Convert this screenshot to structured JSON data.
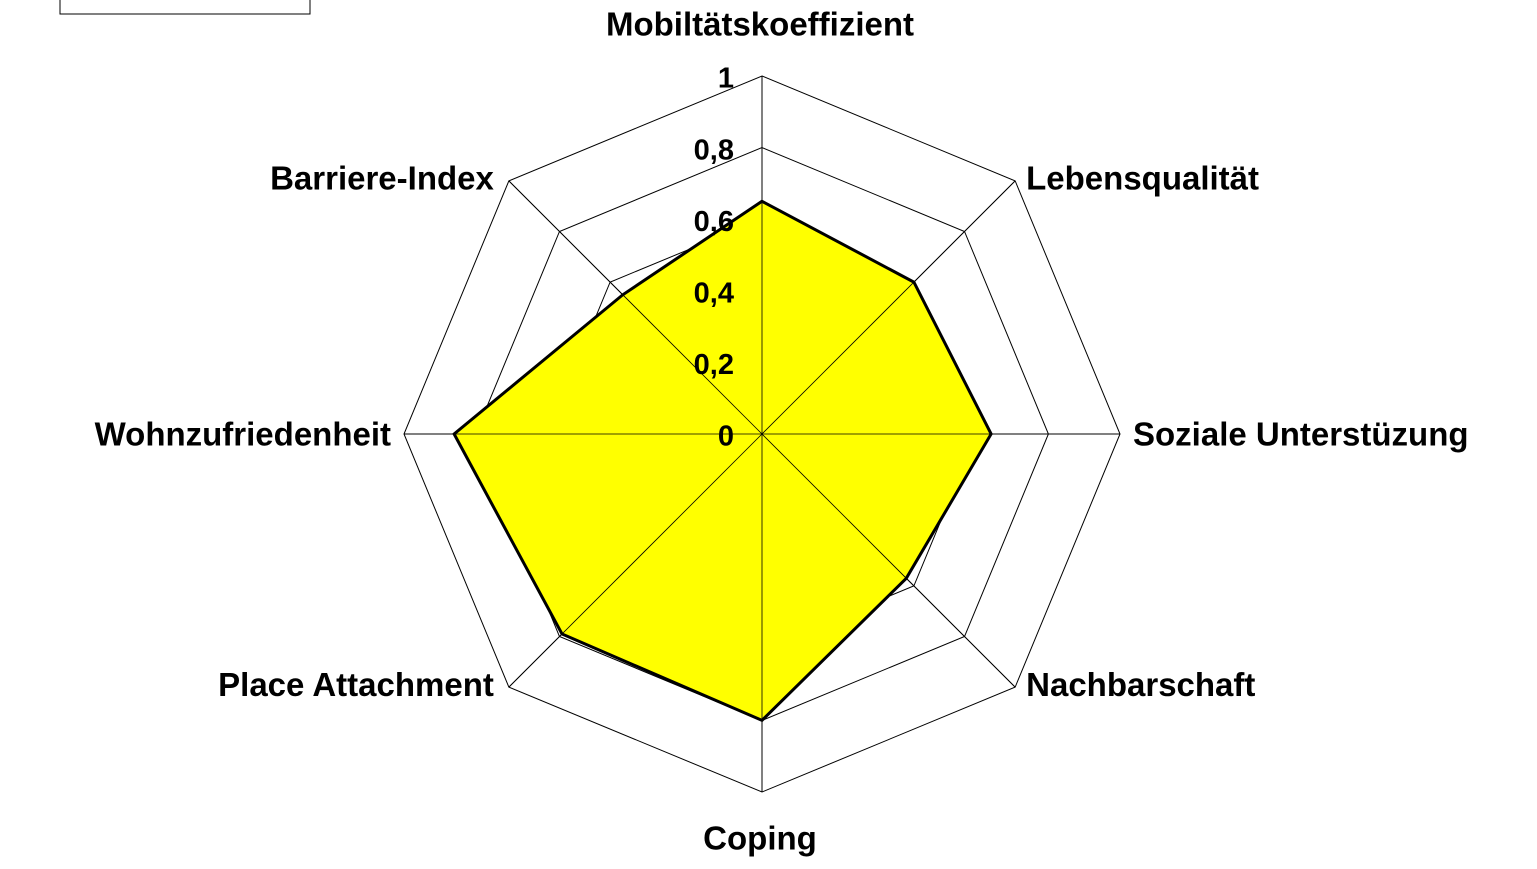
{
  "chart_data": {
    "type": "radar",
    "categories": [
      "Mobiltätskoeffizient",
      "Lebensqualität",
      "Soziale Unterstüzung",
      "Nachbarschaft",
      "Coping",
      "Place Attachment",
      "Wohnzufriedenheit",
      "Barriere-Index"
    ],
    "values": [
      0.65,
      0.6,
      0.64,
      0.57,
      0.8,
      0.79,
      0.86,
      0.55
    ],
    "color": "#ffff00",
    "ylim": [
      0,
      1
    ],
    "yticks": [
      0,
      {
        "value": 0.2,
        "label": "0,2"
      },
      {
        "value": 0.4,
        "label": "0,4"
      },
      {
        "value": 0.6,
        "label": "0,6"
      },
      {
        "value": 0.8,
        "label": "0,8"
      },
      1
    ],
    "grid": true
  }
}
